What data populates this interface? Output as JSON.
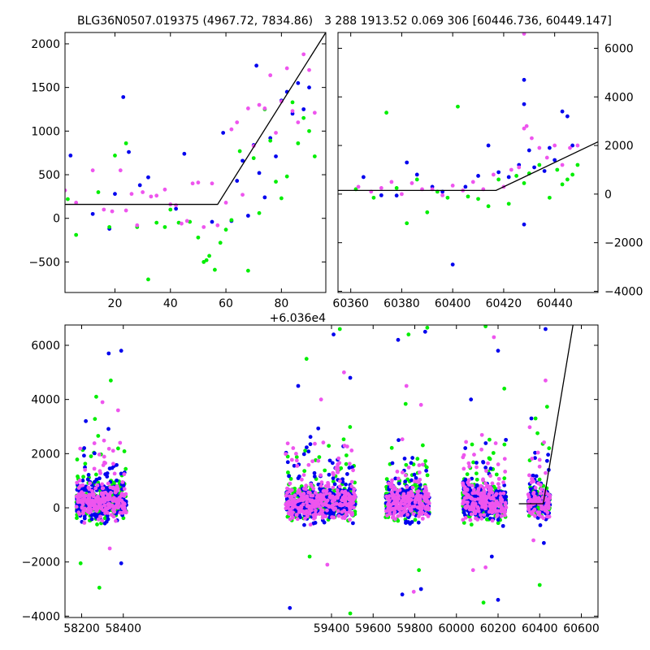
{
  "chart_data": [
    {
      "type": "scatter",
      "panel": "top-left",
      "title": "BLG36N0507.019375 (4967.72, 7834.86)",
      "xlim": [
        2,
        96
      ],
      "ylim": [
        -850,
        2130
      ],
      "x_ticks": [
        20,
        40,
        60,
        80
      ],
      "x_tick_labels": [
        "20",
        "40",
        "60",
        "80"
      ],
      "x_offset_label": "+6.036e4",
      "y_ticks": [
        -500,
        0,
        500,
        1000,
        1500,
        2000
      ],
      "y_tick_labels": [
        "−500",
        "0",
        "500",
        "1000",
        "1500",
        "2000"
      ],
      "grid": false,
      "series": [
        {
          "color": "#0000ee",
          "x": [
            4,
            12,
            18,
            20,
            23,
            25,
            29,
            32,
            42,
            45,
            55,
            59,
            62,
            64,
            66,
            68,
            70,
            71,
            72,
            74,
            76,
            78,
            80,
            82,
            84,
            86,
            88,
            90
          ],
          "y": [
            720,
            50,
            -120,
            280,
            1390,
            760,
            380,
            470,
            110,
            740,
            -40,
            980,
            -30,
            430,
            660,
            30,
            840,
            1750,
            520,
            240,
            920,
            710,
            1350,
            1450,
            1200,
            1550,
            1250,
            1500
          ]
        },
        {
          "color": "#00ee00",
          "x": [
            3,
            6,
            14,
            18,
            20,
            24,
            28,
            32,
            35,
            38,
            40,
            43,
            47,
            50,
            52,
            53,
            54,
            56,
            58,
            60,
            62,
            65,
            68,
            70,
            72,
            74,
            76,
            78,
            80,
            82,
            84,
            86,
            88,
            90,
            92
          ],
          "y": [
            220,
            -190,
            300,
            -100,
            720,
            860,
            -100,
            -700,
            -50,
            -100,
            100,
            -50,
            -40,
            -220,
            -500,
            -480,
            -430,
            -590,
            -280,
            -130,
            -20,
            770,
            -600,
            690,
            60,
            1250,
            890,
            420,
            230,
            480,
            1330,
            860,
            1150,
            1000,
            710
          ]
        },
        {
          "color": "#ee55ee",
          "x": [
            2,
            6,
            12,
            16,
            19,
            22,
            24,
            26,
            28,
            30,
            33,
            35,
            38,
            40,
            42,
            44,
            46,
            48,
            50,
            52,
            55,
            57,
            60,
            62,
            64,
            66,
            68,
            70,
            72,
            74,
            76,
            78,
            80,
            82,
            84,
            86,
            88,
            90,
            92
          ],
          "y": [
            320,
            180,
            550,
            100,
            80,
            550,
            90,
            280,
            -80,
            300,
            250,
            260,
            330,
            160,
            150,
            -60,
            -30,
            400,
            410,
            -100,
            400,
            -80,
            180,
            1020,
            1100,
            270,
            1260,
            830,
            1300,
            1260,
            1640,
            980,
            1340,
            1720,
            1230,
            1100,
            1880,
            1700,
            1210
          ]
        }
      ],
      "model_line": {
        "x": [
          2,
          57,
          96
        ],
        "y": [
          160,
          160,
          2130
        ]
      }
    },
    {
      "type": "scatter",
      "panel": "top-right",
      "title": "3 288 1913.52 0.069 306 [60446.736, 60449.147]",
      "xlim": [
        60355,
        60457
      ],
      "ylim": [
        -4050,
        6650
      ],
      "x_ticks": [
        60360,
        60380,
        60400,
        60420,
        60440
      ],
      "x_tick_labels": [
        "60360",
        "60380",
        "60400",
        "60420",
        "60440"
      ],
      "y_ticks": [
        -4000,
        -2000,
        0,
        2000,
        4000,
        6000
      ],
      "y_tick_labels": [
        "−4000",
        "−2000",
        "0",
        "2000",
        "4000",
        "6000"
      ],
      "y_axis_side": "right",
      "grid": false,
      "series": [
        {
          "color": "#0000ee",
          "x": [
            60365,
            60372,
            60378,
            60382,
            60386,
            60392,
            60396,
            60400,
            60405,
            60410,
            60414,
            60418,
            60422,
            60426,
            60428,
            60428,
            60428,
            60430,
            60432,
            60436,
            60438,
            60440,
            60443,
            60445,
            60447
          ],
          "y": [
            700,
            -50,
            -60,
            1300,
            800,
            300,
            100,
            -2900,
            300,
            750,
            2000,
            900,
            700,
            1200,
            4700,
            3700,
            -1250,
            1800,
            1100,
            950,
            1900,
            1400,
            3400,
            3200,
            2000
          ]
        },
        {
          "color": "#00ee00",
          "x": [
            60362,
            60369,
            60374,
            60378,
            60382,
            60386,
            60390,
            60394,
            60398,
            60402,
            60406,
            60410,
            60414,
            60418,
            60422,
            60425,
            60428,
            60430,
            60434,
            60438,
            60441,
            60443,
            60445,
            60447,
            60449
          ],
          "y": [
            200,
            -150,
            3350,
            250,
            -1200,
            600,
            -750,
            100,
            -150,
            3600,
            -100,
            -200,
            -500,
            600,
            -400,
            750,
            450,
            850,
            1200,
            -150,
            1000,
            400,
            600,
            800,
            1200
          ]
        },
        {
          "color": "#ee55ee",
          "x": [
            60363,
            60368,
            60372,
            60376,
            60380,
            60384,
            60388,
            60392,
            60396,
            60400,
            60404,
            60408,
            60412,
            60416,
            60420,
            60423,
            60426,
            60428,
            60428,
            60429,
            60431,
            60434,
            60437,
            60440,
            60443,
            60446,
            60449
          ],
          "y": [
            300,
            100,
            250,
            500,
            0,
            450,
            200,
            200,
            -50,
            350,
            150,
            500,
            200,
            800,
            300,
            1000,
            1100,
            6600,
            2700,
            2800,
            2300,
            1900,
            1500,
            2000,
            1200,
            1900,
            2000
          ]
        }
      ],
      "model_line": {
        "x": [
          60355,
          60417,
          60457
        ],
        "y": [
          150,
          150,
          2150
        ]
      }
    },
    {
      "type": "scatter",
      "panel": "bottom",
      "xlim": [
        58120,
        60680
      ],
      "ylim": [
        -4050,
        6750
      ],
      "x_ticks": [
        58200,
        58400,
        59400,
        59600,
        59800,
        60000,
        60200,
        60400,
        60600
      ],
      "x_tick_labels": [
        "58200",
        "58400",
        "59400",
        "59600",
        "59800",
        "60000",
        "60200",
        "60400",
        "60600"
      ],
      "broken_axis": "gap between 58500 and 59150",
      "y_ticks": [
        -4000,
        -2000,
        0,
        2000,
        4000,
        6000
      ],
      "y_tick_labels": [
        "−4000",
        "−2000",
        "0",
        "2000",
        "4000",
        "6000"
      ],
      "grid": false,
      "season_clusters": [
        {
          "x_range": [
            58175,
            58415
          ],
          "outliers": [
            [
              58220,
              3200
            ],
            [
              58270,
              4100
            ],
            [
              58300,
              3900
            ],
            [
              58330,
              5700
            ],
            [
              58340,
              4700
            ],
            [
              58375,
              3600
            ],
            [
              58390,
              5800
            ],
            [
              58285,
              -2950
            ],
            [
              58335,
              -1500
            ],
            [
              58390,
              -2050
            ],
            [
              58195,
              -2050
            ]
          ]
        },
        {
          "x_range": [
            59180,
            59515
          ],
          "outliers": [
            [
              59240,
              4500
            ],
            [
              59280,
              5500
            ],
            [
              59350,
              4000
            ],
            [
              59410,
              6400
            ],
            [
              59440,
              6600
            ],
            [
              59460,
              5000
            ],
            [
              59490,
              4800
            ],
            [
              59295,
              -1800
            ],
            [
              59380,
              -2100
            ],
            [
              59200,
              -3700
            ],
            [
              59490,
              -3900
            ]
          ]
        },
        {
          "x_range": [
            59660,
            59870
          ],
          "outliers": [
            [
              59720,
              6200
            ],
            [
              59770,
              6400
            ],
            [
              59760,
              4500
            ],
            [
              59850,
              6500
            ],
            [
              59860,
              6650
            ],
            [
              59830,
              3800
            ],
            [
              59740,
              -3200
            ],
            [
              59820,
              -2300
            ],
            [
              59795,
              -3100
            ],
            [
              59830,
              -3000
            ]
          ]
        },
        {
          "x_range": [
            60030,
            60240
          ],
          "outliers": [
            [
              60070,
              4000
            ],
            [
              60140,
              6700
            ],
            [
              60180,
              6300
            ],
            [
              60200,
              5800
            ],
            [
              60230,
              4400
            ],
            [
              60140,
              -2200
            ],
            [
              60200,
              -3400
            ],
            [
              60130,
              -3500
            ],
            [
              60080,
              -2300
            ],
            [
              60170,
              -1800
            ]
          ]
        },
        {
          "x_range": [
            60345,
            60450
          ],
          "outliers": [
            [
              60360,
              3300
            ],
            [
              60380,
              3300
            ],
            [
              60428,
              4700
            ],
            [
              60428,
              6600
            ],
            [
              60400,
              -2850
            ],
            [
              60370,
              -1200
            ],
            [
              60420,
              -1300
            ],
            [
              60445,
              2200
            ]
          ]
        }
      ],
      "series": [
        {
          "color": "#0000ee"
        },
        {
          "color": "#00ee00"
        },
        {
          "color": "#ee55ee"
        }
      ],
      "model_line": {
        "x": [
          60300,
          60417,
          60560
        ],
        "y": [
          150,
          150,
          6750
        ]
      }
    }
  ]
}
